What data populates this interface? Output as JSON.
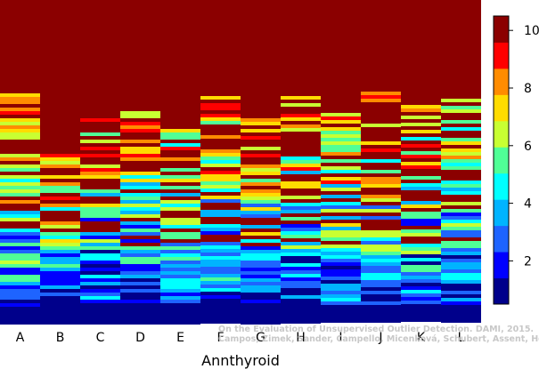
{
  "chart_data": {
    "type": "heatmap",
    "title": "",
    "xlabel": "Annthyroid",
    "ylabel": "",
    "categories": [
      "A",
      "B",
      "C",
      "D",
      "E",
      "F",
      "G",
      "H",
      "I",
      "J",
      "K",
      "L"
    ],
    "colorbar": {
      "range": [
        0.5,
        10.5
      ],
      "ticks": [
        2,
        4,
        6,
        8,
        10
      ],
      "colors": [
        "#00008b",
        "#0000ff",
        "#1e64ff",
        "#00b4ff",
        "#00ffff",
        "#50ff96",
        "#c8ff32",
        "#ffdc00",
        "#ff8c00",
        "#ff0000",
        "#8b0000"
      ]
    },
    "columns": [
      {
        "top_score": 10,
        "first_row_below_10": 97,
        "dark_blue_base_start": 342
      },
      {
        "top_score": 10,
        "first_row_below_10": 161,
        "dark_blue_base_start": 340
      },
      {
        "top_score": 10,
        "first_row_below_10": 125,
        "dark_blue_base_start": 340
      },
      {
        "top_score": 10,
        "first_row_below_10": 125,
        "dark_blue_base_start": 340
      },
      {
        "top_score": 10,
        "first_row_below_10": 125,
        "dark_blue_base_start": 340
      },
      {
        "top_score": 10,
        "first_row_below_10": 104,
        "dark_blue_base_start": 340
      },
      {
        "top_score": 10,
        "first_row_below_10": 125,
        "dark_blue_base_start": 340
      },
      {
        "top_score": 10,
        "first_row_below_10": 100,
        "dark_blue_base_start": 345
      },
      {
        "top_score": 10,
        "first_row_below_10": 127,
        "dark_blue_base_start": 340
      },
      {
        "top_score": 10,
        "first_row_below_10": 103,
        "dark_blue_base_start": 340
      },
      {
        "top_score": 10,
        "first_row_below_10": 110,
        "dark_blue_base_start": 340
      },
      {
        "top_score": 10,
        "first_row_below_10": 107,
        "dark_blue_base_start": 340
      }
    ],
    "credit": [
      "On the Evaluation of Unsupervised Outlier Detection. DAMI, 2015.",
      "Campos, Zimek, Sander, Campello, Micenková, Schubert, Assent, Houle"
    ]
  }
}
